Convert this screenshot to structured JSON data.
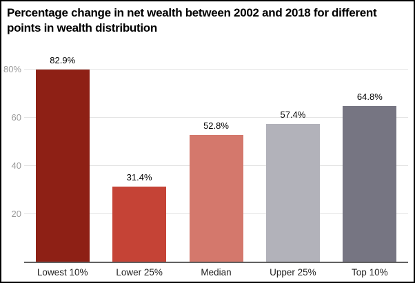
{
  "page": {
    "background": "#ffffff",
    "border_color": "#000000"
  },
  "chart_data": {
    "type": "bar",
    "title": "Percentage change in net wealth between 2002 and 2018 for different points in wealth distribution",
    "categories": [
      "Lowest 10%",
      "Lower 25%",
      "Median",
      "Upper 25%",
      "Top 10%"
    ],
    "values": [
      82.9,
      31.4,
      52.8,
      57.4,
      64.8
    ],
    "value_labels": [
      "82.9%",
      "31.4%",
      "52.8%",
      "57.4%",
      "64.8%"
    ],
    "bar_colors": [
      "#8e2015",
      "#c54336",
      "#d4786c",
      "#b2b2ba",
      "#767582"
    ],
    "ylim": [
      0,
      86
    ],
    "yticks": [
      20,
      40,
      60,
      80
    ],
    "ytick_labels": [
      "20",
      "40",
      "60",
      "80%"
    ],
    "grid": true,
    "legend": "none",
    "colors": {
      "gridline": "#e4e4e4",
      "axis_line": "#616161",
      "ytick_text": "#9a9a9a",
      "xtick_text": "#1f1f1f",
      "value_label_text": "#000000",
      "title_text": "#000000"
    }
  }
}
